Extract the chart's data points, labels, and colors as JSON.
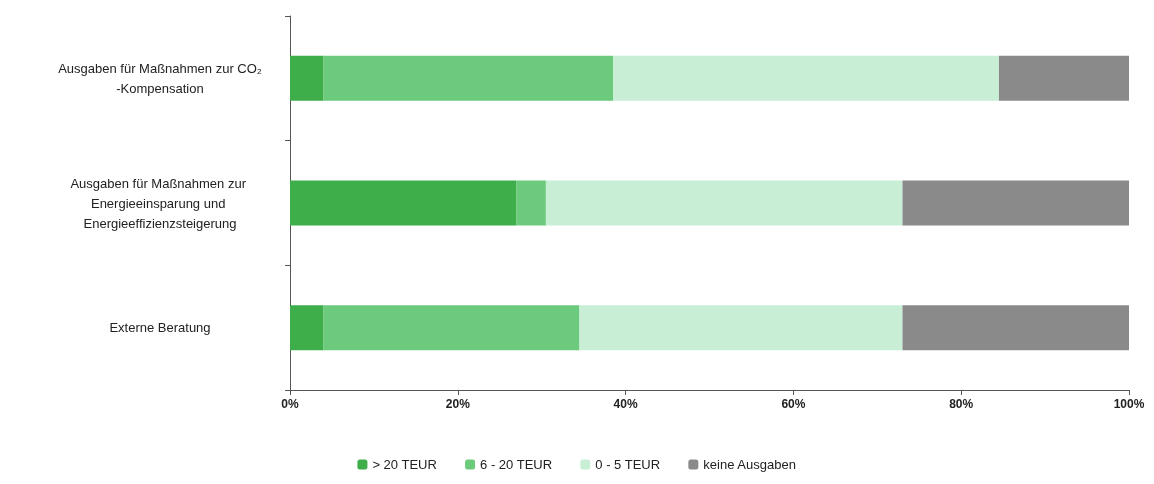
{
  "chart_data": {
    "type": "bar",
    "orientation": "horizontal",
    "stacked": true,
    "categories": [
      "Ausgaben für Maßnahmen zur CO₂-Kompensation",
      "Ausgaben für Maßnahmen zur Energieeinsparung und Energieeffizienzsteigerung",
      "Externe Beratung"
    ],
    "series": [
      {
        "name": "> 20 TEUR",
        "color": "#3dae4a",
        "values": [
          4,
          27,
          4
        ]
      },
      {
        "name": "6 - 20 TEUR",
        "color": "#6cca7c",
        "values": [
          34.5,
          3.5,
          30.5
        ]
      },
      {
        "name": "0 - 5 TEUR",
        "color": "#c8eed6",
        "values": [
          46,
          42.5,
          38.5
        ]
      },
      {
        "name": "keine Ausgaben",
        "color": "#8a8a8a",
        "values": [
          15.5,
          27,
          27
        ]
      }
    ],
    "xlim": [
      0,
      100
    ],
    "xticks": [
      {
        "value": 0,
        "label": "0%"
      },
      {
        "value": 20,
        "label": "20%"
      },
      {
        "value": 40,
        "label": "40%"
      },
      {
        "value": 60,
        "label": "60%"
      },
      {
        "value": 80,
        "label": "80%"
      },
      {
        "value": 100,
        "label": "100%"
      }
    ],
    "grid": false,
    "legend": "bottom"
  }
}
